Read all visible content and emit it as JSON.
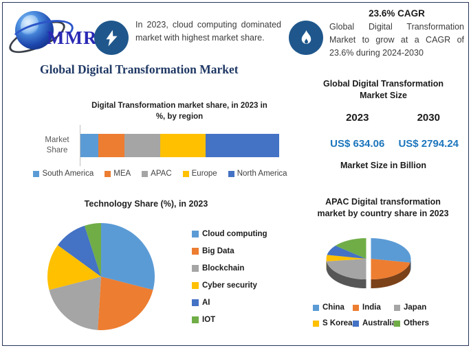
{
  "colors": {
    "frame": "#26365a",
    "badge": "#1f578c",
    "heading": "#1f3864",
    "value_blue": "#1b75bc"
  },
  "header": {
    "logo_text": "MMR",
    "left_icon": "lightning-bolt",
    "left_insight": "In 2023, cloud computing dominated market with highest market share.",
    "cagr_title": "23.6% CAGR",
    "right_icon": "flame",
    "right_insight": "Global Digital Transformation Market to grow at a CAGR of 23.6% during 2024-2030"
  },
  "page_title": "Global Digital Transformation Market",
  "market_size_panel": {
    "title": "Global Digital Transformation\nMarket Size",
    "years": [
      "2023",
      "2030"
    ],
    "values": [
      "US$ 634.06",
      "US$ 2794.24"
    ],
    "note": "Market Size in Billion"
  },
  "chart_data": [
    {
      "type": "bar",
      "variant": "stacked-horizontal-single",
      "title": "Digital Transformation market share, in 2023 in\n%, by region",
      "category_label": "Market Share",
      "unit": "%",
      "series": [
        {
          "name": "South America",
          "value": 9,
          "color": "#5B9BD5"
        },
        {
          "name": "MEA",
          "value": 13,
          "color": "#ED7D31"
        },
        {
          "name": "APAC",
          "value": 18,
          "color": "#A5A5A5"
        },
        {
          "name": "Europe",
          "value": 23,
          "color": "#FFC000"
        },
        {
          "name": "North America",
          "value": 37,
          "color": "#4472C4"
        }
      ],
      "legend_position": "bottom"
    },
    {
      "type": "pie",
      "variant": "flat",
      "title": "Technology Share (%), in 2023",
      "unit": "%",
      "slices": [
        {
          "label": "Cloud computing",
          "value": 29,
          "color": "#5B9BD5"
        },
        {
          "label": "Big Data",
          "value": 22,
          "color": "#ED7D31"
        },
        {
          "label": "Blockchain",
          "value": 20,
          "color": "#A5A5A5"
        },
        {
          "label": "Cyber security",
          "value": 14,
          "color": "#FFC000"
        },
        {
          "label": "AI",
          "value": 10,
          "color": "#4472C4"
        },
        {
          "label": "IOT",
          "value": 5,
          "color": "#70AD47"
        }
      ],
      "legend_position": "right"
    },
    {
      "type": "pie",
      "variant": "3d-exploded",
      "title": "APAC Digital transformation\nmarket by country share in 2023",
      "unit": "%",
      "slices": [
        {
          "label": "China",
          "value": 28,
          "color": "#5B9BD5"
        },
        {
          "label": "India",
          "value": 22,
          "color": "#ED7D31"
        },
        {
          "label": "Japan",
          "value": 23,
          "color": "#A5A5A5"
        },
        {
          "label": "S Korea",
          "value": 5,
          "color": "#FFC000"
        },
        {
          "label": "Australia",
          "value": 8,
          "color": "#4472C4"
        },
        {
          "label": "Others",
          "value": 14,
          "color": "#70AD47"
        }
      ],
      "legend_position": "bottom"
    }
  ]
}
